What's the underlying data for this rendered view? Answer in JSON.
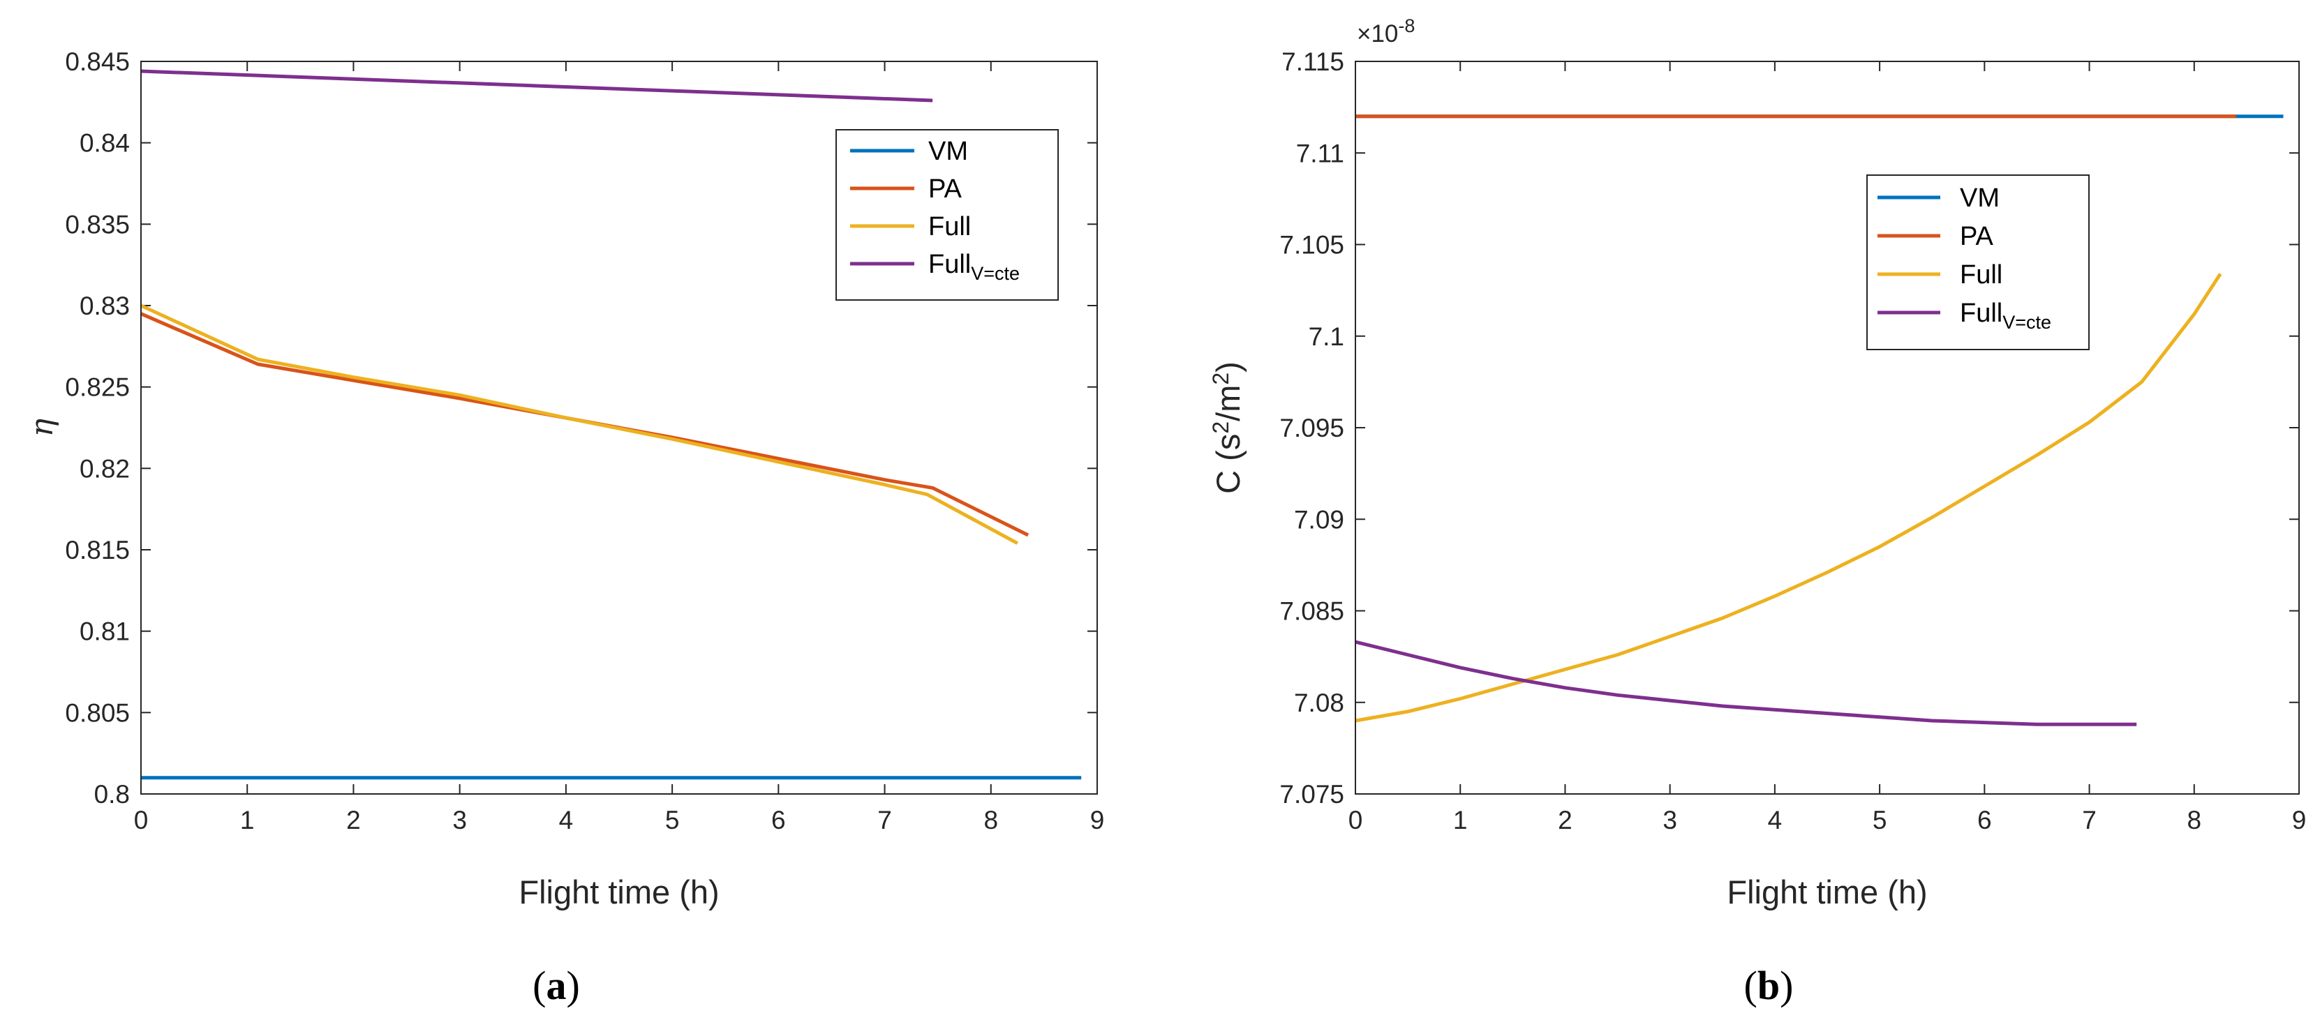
{
  "chart_data": [
    {
      "id": "a",
      "type": "line",
      "caption_letter": "a",
      "xlabel": "Flight time (h)",
      "ylabel": "η",
      "xlim": [
        0,
        9
      ],
      "ylim": [
        0.8,
        0.845
      ],
      "xticks": [
        0,
        1,
        2,
        3,
        4,
        5,
        6,
        7,
        8,
        9
      ],
      "xtick_labels": [
        "0",
        "1",
        "2",
        "3",
        "4",
        "5",
        "6",
        "7",
        "8",
        "9"
      ],
      "yticks": [
        0.8,
        0.805,
        0.81,
        0.815,
        0.82,
        0.825,
        0.83,
        0.835,
        0.84,
        0.845
      ],
      "ytick_labels": [
        "0.8",
        "0.805",
        "0.81",
        "0.815",
        "0.82",
        "0.825",
        "0.83",
        "0.835",
        "0.84",
        "0.845"
      ],
      "legend_position": "top-right",
      "series": [
        {
          "name": "VM",
          "label": "VM",
          "sub": "",
          "color": "#0072BD",
          "x": [
            0,
            8.85
          ],
          "y": [
            0.801,
            0.801
          ]
        },
        {
          "name": "PA",
          "label": "PA",
          "sub": "",
          "color": "#D95319",
          "x": [
            0,
            1.1,
            2,
            3,
            4,
            5,
            6,
            7,
            7.45,
            8.35
          ],
          "y": [
            0.8295,
            0.8264,
            0.8254,
            0.8243,
            0.8231,
            0.8219,
            0.8206,
            0.8193,
            0.8188,
            0.8159
          ]
        },
        {
          "name": "Full",
          "label": "Full",
          "sub": "",
          "color": "#EDB120",
          "x": [
            0,
            0.5,
            1.1,
            2,
            3,
            4,
            5,
            6,
            7,
            7.4,
            8.25
          ],
          "y": [
            0.83,
            0.8285,
            0.8267,
            0.8256,
            0.8245,
            0.8231,
            0.8218,
            0.8204,
            0.819,
            0.8184,
            0.8154
          ]
        },
        {
          "name": "Full_V=cte",
          "label": "Full",
          "sub": "V=cte",
          "color": "#7E2F8E",
          "x": [
            0,
            7.45
          ],
          "y": [
            0.8444,
            0.8426
          ]
        }
      ]
    },
    {
      "id": "b",
      "type": "line",
      "caption_letter": "b",
      "xlabel": "Flight time (h)",
      "ylabel_main": "C (s",
      "ylabel_sup1": "2",
      "ylabel_mid": "/m",
      "ylabel_sup2": "2",
      "ylabel_end": ")",
      "y_multiplier_base": "×10",
      "y_multiplier_exp": "-8",
      "xlim": [
        0,
        9
      ],
      "ylim": [
        7.075,
        7.115
      ],
      "xticks": [
        0,
        1,
        2,
        3,
        4,
        5,
        6,
        7,
        8,
        9
      ],
      "xtick_labels": [
        "0",
        "1",
        "2",
        "3",
        "4",
        "5",
        "6",
        "7",
        "8",
        "9"
      ],
      "yticks": [
        7.075,
        7.08,
        7.085,
        7.09,
        7.095,
        7.1,
        7.105,
        7.11,
        7.115
      ],
      "ytick_labels": [
        "7.075",
        "7.08",
        "7.085",
        "7.09",
        "7.095",
        "7.1",
        "7.105",
        "7.11",
        "7.115"
      ],
      "legend_position": "center-right",
      "series": [
        {
          "name": "VM",
          "label": "VM",
          "sub": "",
          "color": "#0072BD",
          "x": [
            0,
            8.85
          ],
          "y": [
            7.112,
            7.112
          ]
        },
        {
          "name": "PA",
          "label": "PA",
          "sub": "",
          "color": "#D95319",
          "x": [
            0,
            8.4
          ],
          "y": [
            7.112,
            7.112
          ]
        },
        {
          "name": "Full",
          "label": "Full",
          "sub": "",
          "color": "#EDB120",
          "x": [
            0,
            0.5,
            1,
            1.5,
            2,
            2.5,
            3,
            3.5,
            4,
            4.5,
            5,
            5.5,
            6,
            6.5,
            7,
            7.5,
            8,
            8.25
          ],
          "y": [
            7.079,
            7.0795,
            7.0802,
            7.081,
            7.0818,
            7.0826,
            7.0836,
            7.0846,
            7.0858,
            7.0871,
            7.0885,
            7.0901,
            7.0918,
            7.0935,
            7.0953,
            7.0975,
            7.1012,
            7.1034
          ]
        },
        {
          "name": "Full_V=cte",
          "label": "Full",
          "sub": "V=cte",
          "color": "#7E2F8E",
          "x": [
            0,
            0.5,
            1,
            1.5,
            2,
            2.5,
            3,
            3.5,
            4,
            4.5,
            5,
            5.5,
            6,
            6.5,
            7,
            7.45
          ],
          "y": [
            7.0833,
            7.0826,
            7.0819,
            7.0813,
            7.0808,
            7.0804,
            7.0801,
            7.0798,
            7.0796,
            7.0794,
            7.0792,
            7.079,
            7.0789,
            7.0788,
            7.0788,
            7.0788
          ]
        }
      ]
    }
  ]
}
